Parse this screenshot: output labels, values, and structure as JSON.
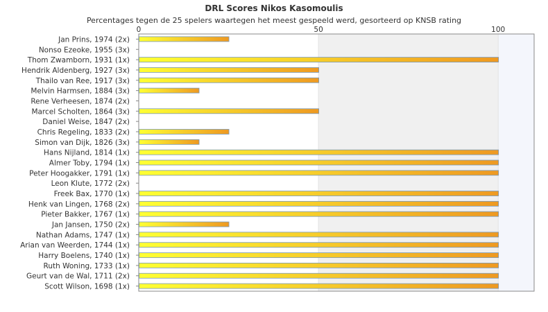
{
  "chart_data": {
    "type": "bar",
    "orientation": "horizontal",
    "title": "DRL Scores Nikos Kasomoulis",
    "subtitle": "Percentages tegen de 25 spelers waartegen het meest gespeeld werd, gesorteerd op KNSB rating",
    "xlim": [
      0,
      110
    ],
    "xticks": [
      0,
      50,
      100
    ],
    "grid": true,
    "categories": [
      "Jan Prins, 1974 (2x)",
      "Nonso Ezeoke, 1955 (3x)",
      "Thom Zwamborn, 1931 (1x)",
      "Hendrik Aldenberg, 1927 (3x)",
      "Thailo van Ree, 1917 (3x)",
      "Melvin Harmsen, 1884 (3x)",
      "Rene Verheesen, 1874 (2x)",
      "Marcel Scholten, 1864 (3x)",
      "Daniel Weise, 1847 (2x)",
      "Chris Regeling, 1833 (2x)",
      "Simon van Dijk, 1826 (3x)",
      "Hans Nijland, 1814 (1x)",
      "Almer Toby, 1794 (1x)",
      "Peter Hoogakker, 1791 (1x)",
      "Leon Klute, 1772 (2x)",
      "Freek Bax, 1770 (1x)",
      "Henk van Lingen, 1768 (2x)",
      "Pieter Bakker, 1767 (1x)",
      "Jan Jansen, 1750 (2x)",
      "Nathan Adams, 1747 (1x)",
      "Arian van Weerden, 1744 (1x)",
      "Harry Boelens, 1740 (1x)",
      "Ruth Woning, 1733 (1x)",
      "Geurt van de Wal, 1711 (2x)",
      "Scott Wilson, 1698 (1x)"
    ],
    "values": [
      25,
      0,
      100,
      50,
      50,
      16.7,
      0,
      50,
      0,
      25,
      16.7,
      100,
      100,
      100,
      0,
      100,
      100,
      100,
      25,
      100,
      100,
      100,
      100,
      100,
      100
    ],
    "colors": {
      "bar_start": "#ffff33",
      "bar_end": "#ee9922",
      "bar_border": "#7799bb",
      "band_light": "#ffffff",
      "band_dark": "#f0f0f0",
      "band_end": "#f4f6fc",
      "axis": "#888888"
    }
  }
}
